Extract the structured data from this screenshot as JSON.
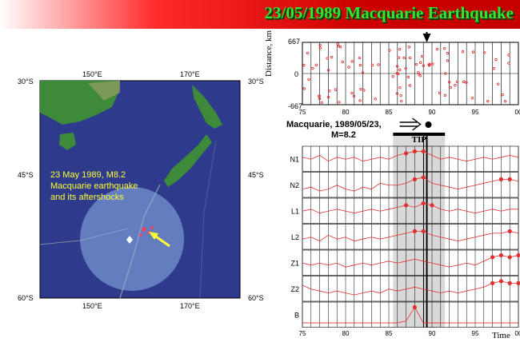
{
  "title": "23/05/1989 Macquarie Earthquake",
  "map": {
    "lon_labels_top": [
      "150°E",
      "170°E"
    ],
    "lon_labels_bottom": [
      "150°E",
      "170°E"
    ],
    "lat_labels_left": [
      "30°S",
      "45°S",
      "60°S"
    ],
    "lat_labels_right": [
      "30°S",
      "45°S",
      "60°S"
    ],
    "annotation_lines": [
      "23 May 1989, M8.2",
      "Macquarie earthquake",
      "and its aftershocks"
    ],
    "colors": {
      "ocean": "#2e3a8c",
      "land": "#3c8a3a",
      "circle": "#8fb4e8",
      "arrow": "#ffff33"
    }
  },
  "distance_axis": {
    "label": "Distance, km",
    "ticks": [
      "667",
      "0",
      "-667"
    ],
    "x_ticks": [
      "75",
      "80",
      "85",
      "90",
      "95",
      "00"
    ]
  },
  "caption": {
    "line1": "Macquarie, 1989/05/23,",
    "line2": "M=8.2",
    "tip_label": "TIP"
  },
  "series_labels": [
    "N1",
    "N2",
    "L1",
    "L2",
    "Z1",
    "Z2",
    "B"
  ],
  "bottom_ticks": [
    "75",
    "80",
    "85",
    "90",
    "95",
    "00"
  ],
  "time_label": "Time",
  "chart_data": {
    "type": "line",
    "x_range": [
      1975,
      2000
    ],
    "event_year": 1989.4,
    "tip_window": [
      1985.5,
      1991.5
    ],
    "series": [
      {
        "name": "N1",
        "values": [
          0.6,
          0.5,
          0.7,
          0.4,
          0.6,
          0.5,
          0.6,
          0.4,
          0.5,
          0.6,
          0.5,
          0.7,
          0.8,
          0.9,
          0.9,
          0.7,
          0.5,
          0.6,
          0.5,
          0.4,
          0.5,
          0.6,
          0.5,
          0.6,
          0.7,
          0.6
        ]
      },
      {
        "name": "N2",
        "values": [
          0.3,
          0.4,
          0.2,
          0.3,
          0.5,
          0.3,
          0.2,
          0.4,
          0.3,
          0.6,
          0.5,
          0.5,
          0.6,
          0.8,
          0.9,
          0.6,
          0.5,
          0.4,
          0.3,
          0.4,
          0.5,
          0.6,
          0.7,
          0.8,
          0.8,
          0.7
        ]
      },
      {
        "name": "L1",
        "values": [
          0.5,
          0.6,
          0.4,
          0.5,
          0.6,
          0.5,
          0.4,
          0.5,
          0.6,
          0.5,
          0.6,
          0.7,
          0.8,
          0.7,
          0.9,
          0.8,
          0.6,
          0.5,
          0.6,
          0.5,
          0.4,
          0.5,
          0.6,
          0.5,
          0.6,
          0.6
        ]
      },
      {
        "name": "L2",
        "values": [
          0.4,
          0.5,
          0.3,
          0.6,
          0.4,
          0.5,
          0.3,
          0.4,
          0.5,
          0.4,
          0.5,
          0.6,
          0.7,
          0.8,
          0.8,
          0.6,
          0.5,
          0.4,
          0.3,
          0.4,
          0.5,
          0.6,
          0.7,
          0.7,
          0.8,
          0.7
        ]
      },
      {
        "name": "Z1",
        "values": [
          0.5,
          0.4,
          0.5,
          0.4,
          0.5,
          0.3,
          0.4,
          0.5,
          0.4,
          0.5,
          0.6,
          0.5,
          0.6,
          0.7,
          0.6,
          0.5,
          0.4,
          0.3,
          0.4,
          0.5,
          0.4,
          0.6,
          0.8,
          0.9,
          0.8,
          0.9
        ]
      },
      {
        "name": "Z2",
        "values": [
          0.7,
          0.5,
          0.4,
          0.3,
          0.4,
          0.3,
          0.2,
          0.3,
          0.4,
          0.3,
          0.5,
          0.4,
          0.5,
          0.6,
          0.5,
          0.4,
          0.3,
          0.4,
          0.3,
          0.4,
          0.5,
          0.6,
          0.8,
          0.9,
          0.8,
          0.8
        ]
      },
      {
        "name": "B",
        "values": [
          0.1,
          0.1,
          0.1,
          0.1,
          0.1,
          0.1,
          0.1,
          0.1,
          0.1,
          0.1,
          0.1,
          0.1,
          0.2,
          0.9,
          0.1,
          0.1,
          0.1,
          0.1,
          0.1,
          0.1,
          0.1,
          0.1,
          0.1,
          0.1,
          0.1,
          0.1
        ]
      }
    ]
  }
}
